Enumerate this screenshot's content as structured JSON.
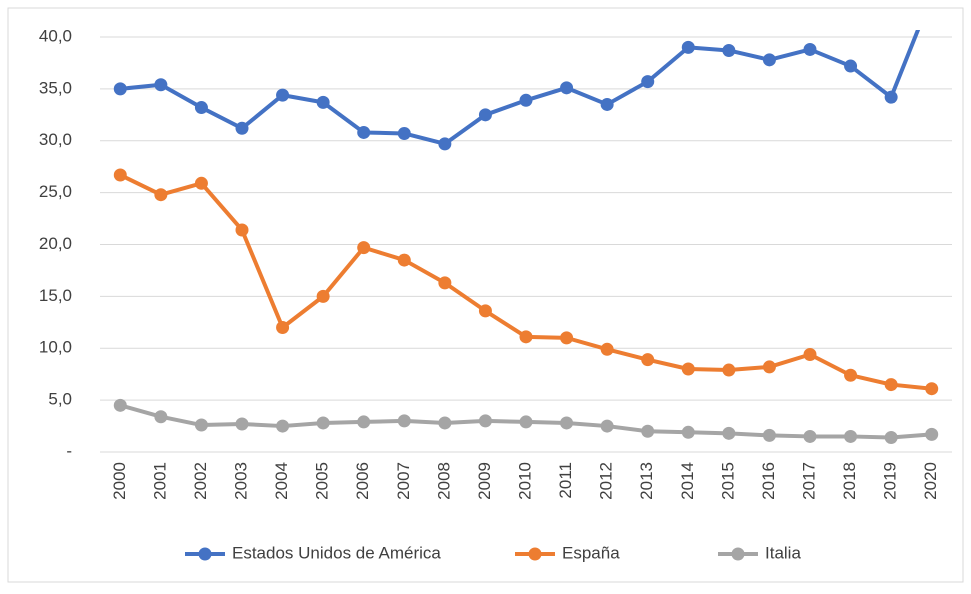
{
  "chart_data": {
    "type": "line",
    "categories": [
      "2000",
      "2001",
      "2002",
      "2003",
      "2004",
      "2005",
      "2006",
      "2007",
      "2008",
      "2009",
      "2010",
      "2011",
      "2012",
      "2013",
      "2014",
      "2015",
      "2016",
      "2017",
      "2018",
      "2019",
      "2020"
    ],
    "series": [
      {
        "name": "Estados Unidos de América",
        "color": "#4472c4",
        "values": [
          35.0,
          35.4,
          33.2,
          31.2,
          34.4,
          33.7,
          30.8,
          30.7,
          29.7,
          32.5,
          33.9,
          35.1,
          33.5,
          35.7,
          39.0,
          38.7,
          37.8,
          38.8,
          37.2,
          34.2,
          44.0
        ]
      },
      {
        "name": "España",
        "color": "#ed7d31",
        "values": [
          26.7,
          24.8,
          25.9,
          21.4,
          12.0,
          15.0,
          19.7,
          18.5,
          16.3,
          13.6,
          11.1,
          11.0,
          9.9,
          8.9,
          8.0,
          7.9,
          8.2,
          9.4,
          7.4,
          6.5,
          6.1
        ]
      },
      {
        "name": "Italia",
        "color": "#a5a5a5",
        "values": [
          4.5,
          3.4,
          2.6,
          2.7,
          2.5,
          2.8,
          2.9,
          3.0,
          2.8,
          3.0,
          2.9,
          2.8,
          2.5,
          2.0,
          1.9,
          1.8,
          1.6,
          1.5,
          1.5,
          1.4,
          1.7
        ]
      }
    ],
    "ylim": [
      0,
      40
    ],
    "yticks": [
      {
        "value": 0,
        "label": "-"
      },
      {
        "value": 5,
        "label": "5,0"
      },
      {
        "value": 10,
        "label": "10,0"
      },
      {
        "value": 15,
        "label": "15,0"
      },
      {
        "value": 20,
        "label": "20,0"
      },
      {
        "value": 25,
        "label": "25,0"
      },
      {
        "value": 30,
        "label": "30,0"
      },
      {
        "value": 35,
        "label": "35,0"
      },
      {
        "value": 40,
        "label": "40,0"
      }
    ],
    "grid": true,
    "legend": "bottom"
  }
}
